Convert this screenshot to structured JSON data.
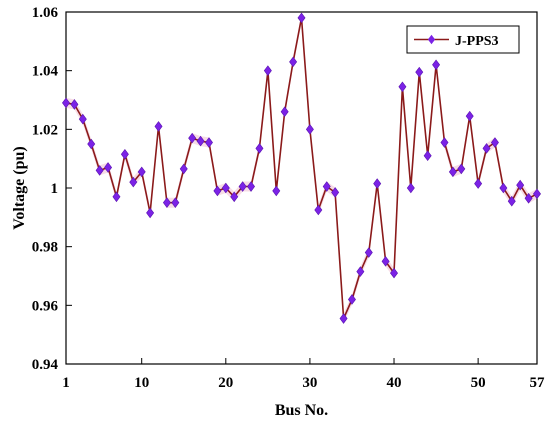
{
  "chart_data": {
    "type": "line",
    "xlabel": "Bus No.",
    "ylabel": "Voltage (pu)",
    "xlim": [
      1,
      57
    ],
    "ylim": [
      0.94,
      1.06
    ],
    "x_ticks": [
      1,
      10,
      20,
      30,
      40,
      50,
      57
    ],
    "y_ticks": [
      0.94,
      0.96,
      0.98,
      1.0,
      1.02,
      1.04,
      1.06
    ],
    "y_tick_labels": [
      "0.94",
      "0.96",
      "0.98",
      "1",
      "1.02",
      "1.04",
      "1.06"
    ],
    "grid": false,
    "legend_position": "top-right",
    "series": [
      {
        "name": "J-PPS3",
        "line_color": "#8b1a1a",
        "fill_color": "#f7dce6",
        "marker": "diamond",
        "marker_color": "#7b22e6",
        "x": [
          1,
          2,
          3,
          4,
          5,
          6,
          7,
          8,
          9,
          10,
          11,
          12,
          13,
          14,
          15,
          16,
          17,
          18,
          19,
          20,
          21,
          22,
          23,
          24,
          25,
          26,
          27,
          28,
          29,
          30,
          31,
          32,
          33,
          34,
          35,
          36,
          37,
          38,
          39,
          40,
          41,
          42,
          43,
          44,
          45,
          46,
          47,
          48,
          49,
          50,
          51,
          52,
          53,
          54,
          55,
          56,
          57
        ],
        "values": [
          1.029,
          1.0285,
          1.0235,
          1.015,
          1.006,
          1.007,
          0.997,
          1.0115,
          1.002,
          1.0055,
          0.9915,
          1.021,
          0.995,
          0.995,
          1.0065,
          1.017,
          1.016,
          1.0155,
          0.999,
          1.0,
          0.997,
          1.0005,
          1.0005,
          1.0135,
          1.04,
          0.999,
          1.026,
          1.043,
          1.058,
          1.02,
          0.9925,
          1.0005,
          0.9985,
          0.9555,
          0.962,
          0.9715,
          0.978,
          1.0015,
          0.975,
          0.971,
          1.0345,
          1.0,
          1.0395,
          1.011,
          1.042,
          1.0155,
          1.0055,
          1.0065,
          1.0245,
          1.0015,
          1.0135,
          1.0155,
          1.0,
          0.9955,
          1.001,
          0.9965,
          0.998
        ]
      }
    ]
  }
}
